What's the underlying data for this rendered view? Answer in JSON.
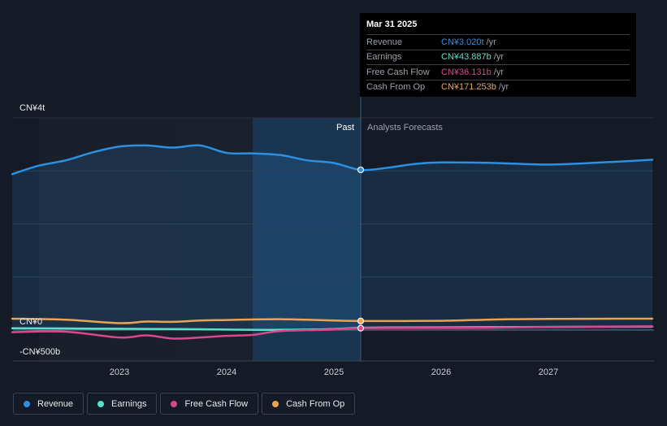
{
  "chart_data": {
    "type": "area",
    "y_unit_label_top": "CN¥4t",
    "y_unit_label_zero": "CN¥0",
    "y_unit_label_bottom": "-CN¥500b",
    "ylim": [
      -500,
      4000
    ],
    "x_ticks": [
      {
        "label": "2023",
        "x": 2023.0
      },
      {
        "label": "2024",
        "x": 2024.0
      },
      {
        "label": "2025",
        "x": 2025.0
      },
      {
        "label": "2026",
        "x": 2026.0
      },
      {
        "label": "2027",
        "x": 2027.0
      }
    ],
    "xlim": [
      2021.75,
      2027.97
    ],
    "past_label": "Past",
    "forecast_label": "Analysts Forecasts",
    "divider_x": 2025.25,
    "shade_start": 2024.25,
    "series": [
      {
        "name": "Revenue",
        "color": "#2d8fdf",
        "fill": true,
        "points": [
          [
            2022.0,
            2940
          ],
          [
            2022.25,
            3100
          ],
          [
            2022.5,
            3200
          ],
          [
            2022.75,
            3350
          ],
          [
            2023.0,
            3460
          ],
          [
            2023.25,
            3480
          ],
          [
            2023.5,
            3440
          ],
          [
            2023.75,
            3480
          ],
          [
            2024.0,
            3340
          ],
          [
            2024.25,
            3330
          ],
          [
            2024.5,
            3300
          ],
          [
            2024.75,
            3200
          ],
          [
            2025.0,
            3150
          ],
          [
            2025.25,
            3020
          ],
          [
            2025.5,
            3060
          ],
          [
            2025.75,
            3130
          ],
          [
            2026.0,
            3160
          ],
          [
            2026.5,
            3150
          ],
          [
            2027.0,
            3120
          ],
          [
            2027.5,
            3160
          ],
          [
            2027.97,
            3210
          ]
        ]
      },
      {
        "name": "Earnings",
        "color": "#59e0c8",
        "fill": false,
        "points": [
          [
            2022.0,
            35
          ],
          [
            2022.5,
            30
          ],
          [
            2023.0,
            25
          ],
          [
            2023.5,
            20
          ],
          [
            2024.0,
            10
          ],
          [
            2024.5,
            5
          ],
          [
            2025.0,
            20
          ],
          [
            2025.25,
            43.9
          ],
          [
            2025.75,
            50
          ],
          [
            2026.5,
            55
          ],
          [
            2027.0,
            60
          ],
          [
            2027.97,
            65
          ]
        ]
      },
      {
        "name": "Free Cash Flow",
        "color": "#d9488e",
        "fill": false,
        "points": [
          [
            2022.0,
            -40
          ],
          [
            2022.5,
            -30
          ],
          [
            2023.0,
            -140
          ],
          [
            2023.25,
            -100
          ],
          [
            2023.5,
            -160
          ],
          [
            2023.75,
            -140
          ],
          [
            2024.0,
            -110
          ],
          [
            2024.25,
            -90
          ],
          [
            2024.5,
            -20
          ],
          [
            2025.0,
            10
          ],
          [
            2025.25,
            36.1
          ],
          [
            2026.0,
            40
          ],
          [
            2026.5,
            45
          ],
          [
            2027.0,
            60
          ],
          [
            2027.97,
            70
          ]
        ]
      },
      {
        "name": "Cash From Op",
        "color": "#e8a452",
        "fill": false,
        "points": [
          [
            2022.0,
            215
          ],
          [
            2022.5,
            195
          ],
          [
            2023.0,
            130
          ],
          [
            2023.25,
            160
          ],
          [
            2023.5,
            155
          ],
          [
            2023.75,
            180
          ],
          [
            2024.0,
            190
          ],
          [
            2024.5,
            205
          ],
          [
            2025.0,
            180
          ],
          [
            2025.25,
            171.3
          ],
          [
            2026.0,
            175
          ],
          [
            2026.5,
            200
          ],
          [
            2027.0,
            210
          ],
          [
            2027.97,
            215
          ]
        ]
      }
    ],
    "markers": [
      {
        "series": "Revenue",
        "x": 2025.25,
        "y": 3020
      },
      {
        "series": "Cash From Op",
        "x": 2025.25,
        "y": 171.3
      },
      {
        "series": "Free Cash Flow",
        "x": 2025.25,
        "y": 36.1
      }
    ],
    "gridlines_y": [
      4000,
      3000,
      2000,
      1000,
      0
    ]
  },
  "tooltip": {
    "date": "Mar 31 2025",
    "rows": [
      {
        "name": "Revenue",
        "value": "CN¥3.020t",
        "unit": "/yr",
        "color": "#2d8fdf"
      },
      {
        "name": "Earnings",
        "value": "CN¥43.887b",
        "unit": "/yr",
        "color": "#59e0c8"
      },
      {
        "name": "Free Cash Flow",
        "value": "CN¥36.131b",
        "unit": "/yr",
        "color": "#d9488e"
      },
      {
        "name": "Cash From Op",
        "value": "CN¥171.253b",
        "unit": "/yr",
        "color": "#e8a452"
      }
    ]
  },
  "legend": [
    {
      "label": "Revenue",
      "color": "#2d8fdf"
    },
    {
      "label": "Earnings",
      "color": "#59e0c8"
    },
    {
      "label": "Free Cash Flow",
      "color": "#d9488e"
    },
    {
      "label": "Cash From Op",
      "color": "#e8a452"
    }
  ]
}
